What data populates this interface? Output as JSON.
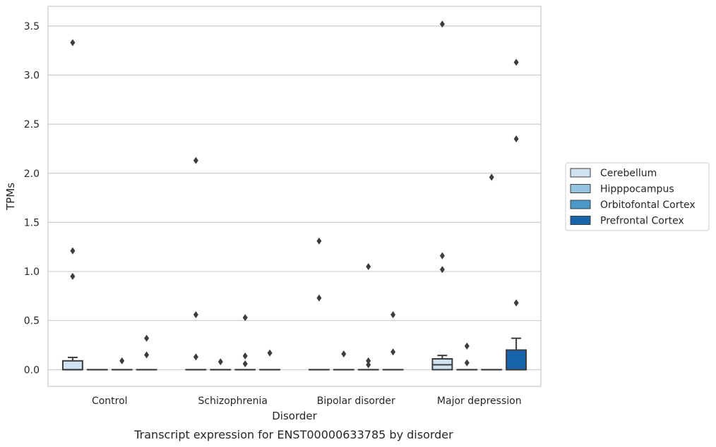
{
  "chart_data": {
    "type": "box",
    "caption": "Transcript expression for ENST00000633785 by disorder",
    "xlabel": "Disorder",
    "ylabel": "TPMs",
    "ylim": [
      -0.17,
      3.7
    ],
    "yticks": [
      "0.0",
      "0.5",
      "1.0",
      "1.5",
      "2.0",
      "2.5",
      "3.0",
      "3.5"
    ],
    "ytick_values": [
      0,
      0.5,
      1.0,
      1.5,
      2.0,
      2.5,
      3.0,
      3.5
    ],
    "grid": "horizontal",
    "legend_position": "right",
    "categories": [
      "Control",
      "Schizophrenia",
      "Bipolar disorder",
      "Major depression"
    ],
    "series": [
      {
        "name": "Cerebellum",
        "color": "#d0e1f2",
        "boxes": [
          {
            "q1": 0.0,
            "median": 0.0,
            "q3": 0.09,
            "whisker_low": 0.0,
            "whisker_high": 0.125,
            "outliers": [
              3.33,
              1.21,
              0.95
            ]
          },
          {
            "q1": 0.0,
            "median": 0.0,
            "q3": 0.0,
            "whisker_low": 0.0,
            "whisker_high": 0.0,
            "outliers": [
              2.13,
              0.56,
              0.13
            ]
          },
          {
            "q1": 0.0,
            "median": 0.0,
            "q3": 0.0,
            "whisker_low": 0.0,
            "whisker_high": 0.0,
            "outliers": [
              1.31,
              0.73
            ]
          },
          {
            "q1": 0.0,
            "median": 0.05,
            "q3": 0.11,
            "whisker_low": 0.0,
            "whisker_high": 0.145,
            "outliers": [
              3.52,
              1.16,
              1.02
            ]
          }
        ]
      },
      {
        "name": "Hipppocampus",
        "color": "#94c4df",
        "boxes": [
          {
            "q1": 0.0,
            "median": 0.0,
            "q3": 0.0,
            "whisker_low": 0.0,
            "whisker_high": 0.0,
            "outliers": []
          },
          {
            "q1": 0.0,
            "median": 0.0,
            "q3": 0.0,
            "whisker_low": 0.0,
            "whisker_high": 0.0,
            "outliers": [
              0.08
            ]
          },
          {
            "q1": 0.0,
            "median": 0.0,
            "q3": 0.0,
            "whisker_low": 0.0,
            "whisker_high": 0.0,
            "outliers": [
              0.16
            ]
          },
          {
            "q1": 0.0,
            "median": 0.0,
            "q3": 0.0,
            "whisker_low": 0.0,
            "whisker_high": 0.0,
            "outliers": [
              0.24,
              0.07
            ]
          }
        ]
      },
      {
        "name": "Orbitofontal Cortex",
        "color": "#4a98c9",
        "boxes": [
          {
            "q1": 0.0,
            "median": 0.0,
            "q3": 0.0,
            "whisker_low": 0.0,
            "whisker_high": 0.0,
            "outliers": [
              0.09
            ]
          },
          {
            "q1": 0.0,
            "median": 0.0,
            "q3": 0.0,
            "whisker_low": 0.0,
            "whisker_high": 0.0,
            "outliers": [
              0.53,
              0.14,
              0.06
            ]
          },
          {
            "q1": 0.0,
            "median": 0.0,
            "q3": 0.0,
            "whisker_low": 0.0,
            "whisker_high": 0.0,
            "outliers": [
              1.05,
              0.09,
              0.05
            ]
          },
          {
            "q1": 0.0,
            "median": 0.0,
            "q3": 0.0,
            "whisker_low": 0.0,
            "whisker_high": 0.0,
            "outliers": [
              1.96
            ]
          }
        ]
      },
      {
        "name": "Prefrontal Cortex",
        "color": "#1764ab",
        "boxes": [
          {
            "q1": 0.0,
            "median": 0.0,
            "q3": 0.0,
            "whisker_low": 0.0,
            "whisker_high": 0.0,
            "outliers": [
              0.32,
              0.15
            ]
          },
          {
            "q1": 0.0,
            "median": 0.0,
            "q3": 0.0,
            "whisker_low": 0.0,
            "whisker_high": 0.0,
            "outliers": [
              0.17
            ]
          },
          {
            "q1": 0.0,
            "median": 0.0,
            "q3": 0.0,
            "whisker_low": 0.0,
            "whisker_high": 0.0,
            "outliers": [
              0.56,
              0.18
            ]
          },
          {
            "q1": 0.0,
            "median": 0.0,
            "q3": 0.2,
            "whisker_low": 0.0,
            "whisker_high": 0.32,
            "outliers": [
              3.13,
              2.35,
              0.68
            ]
          }
        ]
      }
    ]
  }
}
